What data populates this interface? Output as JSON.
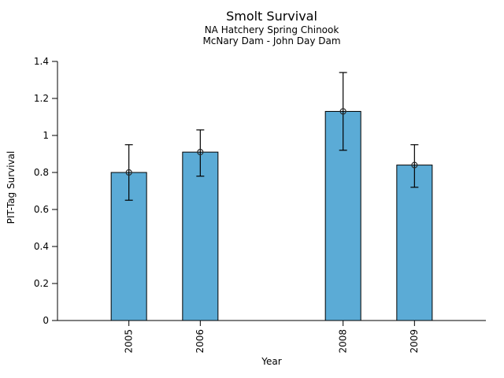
{
  "chart_data": {
    "type": "bar",
    "title": "Smolt Survival",
    "subtitle1": "NA Hatchery Spring Chinook",
    "subtitle2": "McNary Dam - John Day Dam",
    "xlabel": "Year",
    "ylabel": "PIT-Tag Survival",
    "categories": [
      "2005",
      "2006",
      "2008",
      "2009"
    ],
    "x": [
      2005,
      2006,
      2008,
      2009
    ],
    "values": [
      0.8,
      0.91,
      1.13,
      0.84
    ],
    "error_low": [
      0.65,
      0.78,
      0.92,
      0.72
    ],
    "error_high": [
      0.95,
      1.03,
      1.34,
      0.95
    ],
    "ylim": [
      0,
      1.4
    ],
    "yticks": [
      0,
      0.2,
      0.4,
      0.6,
      0.8,
      1,
      1.2,
      1.4
    ],
    "ytick_labels": [
      "0",
      "0.2",
      "0.4",
      "0.6",
      "0.8",
      "1",
      "1.2",
      "1.4"
    ],
    "xlim": [
      2004,
      2010
    ],
    "grid": false,
    "legend": "none",
    "bar_color": "#5BABD6",
    "edge_color": "#000000",
    "marker": "open-circle"
  }
}
